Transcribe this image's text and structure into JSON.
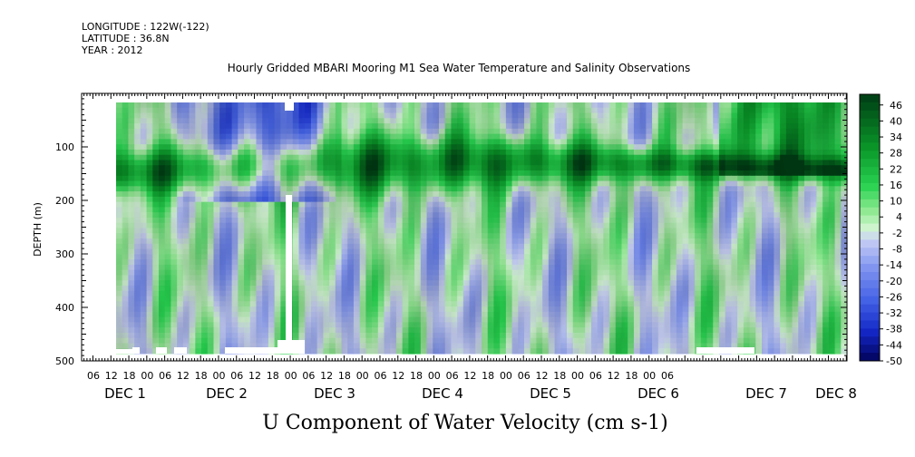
{
  "header": {
    "longitude_line": "LONGITUDE : 122W(-122)",
    "latitude_line": "LATITUDE : 36.8N",
    "year_line": "YEAR : 2012",
    "title": "Hourly Gridded MBARI Mooring M1 Sea Water Temperature and Salinity Observations"
  },
  "chart_data": {
    "type": "heatmap",
    "title": "Hourly Gridded MBARI Mooring M1 Sea Water Temperature and Salinity Observations",
    "variable_label": "U Component of Water Velocity (cm s-1)",
    "xlabel": "",
    "ylabel": "DEPTH (m)",
    "x_hour_ticks": [
      "06",
      "12",
      "18",
      "00",
      "06",
      "12",
      "18",
      "00",
      "06",
      "12",
      "18",
      "00",
      "06",
      "12",
      "18",
      "00",
      "06",
      "12",
      "18",
      "00",
      "06",
      "12",
      "18",
      "00",
      "06",
      "12",
      "18",
      "00",
      "06",
      "12",
      "18",
      "00",
      "06"
    ],
    "x_day_labels": [
      "DEC 1",
      "DEC 2",
      "DEC 3",
      "DEC 4",
      "DEC 5",
      "DEC 6",
      "DEC 7",
      "DEC 8"
    ],
    "y_ticks": [
      100,
      200,
      300,
      400,
      500
    ],
    "ylim": [
      500,
      0
    ],
    "y_inverted": true,
    "colorbar": {
      "levels": [
        "46",
        "40",
        "34",
        "28",
        "22",
        "16",
        "10",
        "4",
        "-2",
        "-8",
        "-14",
        "-20",
        "-26",
        "-32",
        "-38",
        "-44",
        "-50"
      ],
      "min": -50,
      "max": 50,
      "step": 3,
      "colors": {
        "strong_negative": "#000060",
        "negative": "#5070e8",
        "near_zero": "#c8d0f0",
        "weak_positive": "#a0f0a0",
        "positive": "#20c040",
        "strong_positive": "#004010"
      }
    },
    "features": [
      {
        "description": "Strong positive band",
        "depth_range_m": [
          100,
          170
        ],
        "sign": "positive"
      },
      {
        "description": "Negative region near surface",
        "period": [
          "DEC 1 12",
          "DEC 3 06"
        ],
        "depth_range_m": [
          20,
          200
        ],
        "sign": "negative"
      },
      {
        "description": "Positive surface layer",
        "period": [
          "DEC 6 12",
          "DEC 8 00"
        ],
        "depth_range_m": [
          20,
          150
        ],
        "sign": "positive"
      }
    ]
  }
}
